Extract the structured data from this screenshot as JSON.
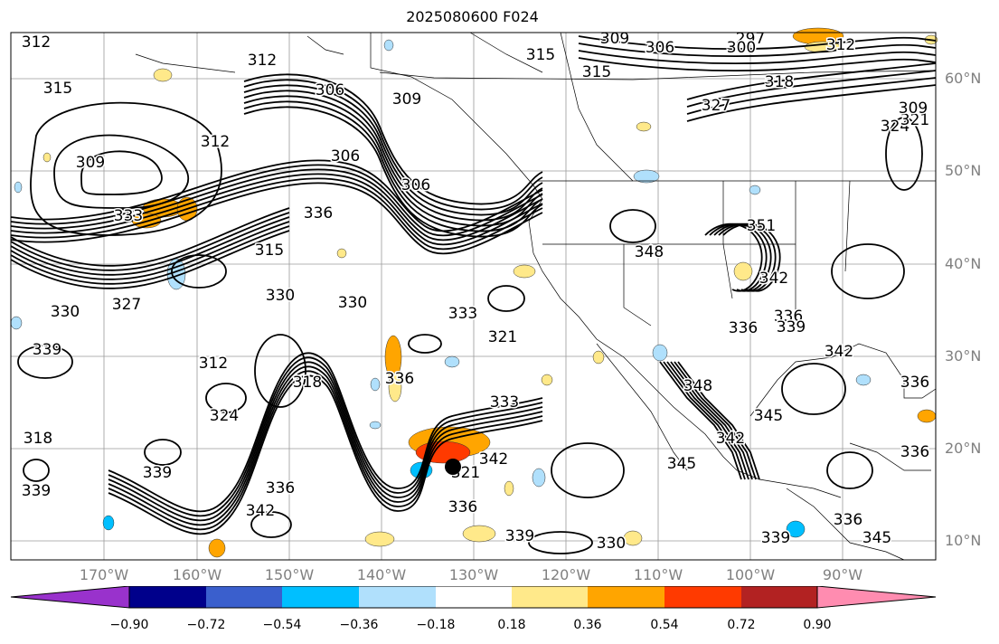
{
  "title": "2025080600 F024",
  "lat_labels": [
    "60°N",
    "50°N",
    "40°N",
    "30°N",
    "20°N",
    "10°N"
  ],
  "lon_labels": [
    "170°W",
    "160°W",
    "150°W",
    "140°W",
    "130°W",
    "120°W",
    "110°W",
    "100°W",
    "90°W"
  ],
  "colorbar": {
    "labels": [
      "−0.90",
      "−0.72",
      "−0.54",
      "−0.36",
      "−0.18",
      "0.18",
      "0.36",
      "0.54",
      "0.72",
      "0.90"
    ],
    "colors": [
      "#9932cc",
      "#00008b",
      "#3a5fcd",
      "#00bfff",
      "#b0e0fc",
      "#ffffff",
      "#ffe98a",
      "#ffa500",
      "#ff3a00",
      "#b22222",
      "#ff8cb0"
    ]
  },
  "contour_labels": [
    "312",
    "315",
    "312",
    "306",
    "309",
    "309",
    "306",
    "297",
    "300",
    "315",
    "309",
    "312",
    "318",
    "315",
    "327",
    "324",
    "321",
    "309",
    "312",
    "306",
    "306",
    "315",
    "333",
    "336",
    "330",
    "327",
    "330",
    "339",
    "330",
    "333",
    "321",
    "312",
    "318",
    "336",
    "333",
    "324",
    "318",
    "339",
    "336",
    "321",
    "342",
    "336",
    "342",
    "339",
    "330",
    "345",
    "348",
    "351",
    "342",
    "336",
    "336",
    "339",
    "342",
    "336",
    "336",
    "345",
    "339",
    "336",
    "348",
    "345",
    "342",
    "339"
  ],
  "marker": "storm-center"
}
